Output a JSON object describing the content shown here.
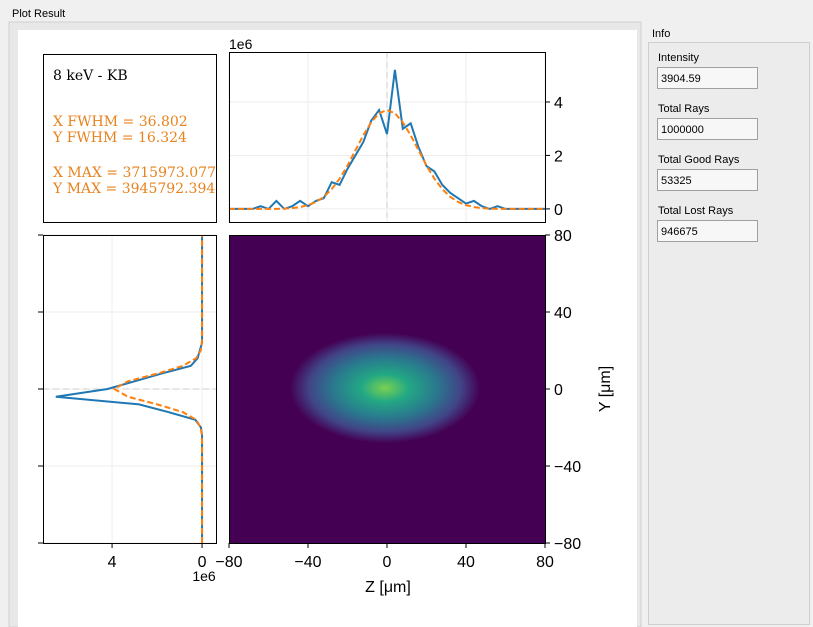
{
  "tab": "Plot Result",
  "info": {
    "title": "Info",
    "fields": [
      {
        "label": "Intensity",
        "value": "3904.59"
      },
      {
        "label": "Total Rays",
        "value": "1000000"
      },
      {
        "label": "Total Good Rays",
        "value": "53325"
      },
      {
        "label": "Total Lost Rays",
        "value": "946675"
      }
    ]
  },
  "text_box": {
    "title": "8 keV - KB",
    "lines": [
      "X FWHM = 36.802",
      "Y FWHM = 16.324",
      "X MAX = 3715973.077",
      "Y MAX = 3945792.394"
    ]
  },
  "chart_data": [
    {
      "type": "line",
      "offset_label": "1e6",
      "grid": true,
      "x": [
        -80,
        -76,
        -72,
        -68,
        -64,
        -60,
        -56,
        -52,
        -48,
        -44,
        -40,
        -36,
        -32,
        -28,
        -24,
        -20,
        -16,
        -12,
        -8,
        -4,
        0,
        4,
        8,
        12,
        16,
        20,
        24,
        28,
        32,
        36,
        40,
        44,
        48,
        52,
        56,
        60,
        64,
        68,
        72,
        76,
        80
      ],
      "series": [
        {
          "color": "#1f77b4",
          "values": [
            0,
            0,
            0,
            0,
            0.1,
            0,
            0.3,
            0,
            0.1,
            0.3,
            0.1,
            0.3,
            0.4,
            1.0,
            0.9,
            1.5,
            2.0,
            2.5,
            3.3,
            3.7,
            2.8,
            5.2,
            3.0,
            3.2,
            2.3,
            1.6,
            1.4,
            0.9,
            0.6,
            0.4,
            0.2,
            0.3,
            0.1,
            0,
            0.1,
            0,
            0,
            0,
            0,
            0,
            0
          ]
        },
        {
          "color": "#ff7f0e",
          "dashed": true,
          "values": [
            0,
            0,
            0,
            0,
            0,
            0,
            0,
            0.01,
            0.03,
            0.07,
            0.14,
            0.26,
            0.45,
            0.74,
            1.13,
            1.62,
            2.19,
            2.75,
            3.24,
            3.58,
            3.7,
            3.58,
            3.24,
            2.75,
            2.19,
            1.62,
            1.13,
            0.74,
            0.45,
            0.26,
            0.14,
            0.07,
            0.03,
            0.01,
            0,
            0,
            0,
            0,
            0,
            0,
            0
          ]
        }
      ],
      "xlim": [
        -80,
        80
      ],
      "ylim": [
        -0.49,
        5.87
      ],
      "yticks": [
        0,
        2,
        4
      ]
    },
    {
      "type": "heatmap",
      "xlabel": "Z [μm]",
      "ylabel": "Y [μm]",
      "xlim": [
        -80,
        80
      ],
      "ylim": [
        -80,
        80
      ],
      "xticks": [
        {
          "value": -80,
          "label": "−80"
        },
        {
          "value": -40,
          "label": "−40"
        },
        0,
        40,
        80
      ],
      "yticks": [
        {
          "value": -80,
          "label": "−80"
        },
        {
          "value": -40,
          "label": "−40"
        },
        0,
        40,
        80
      ]
    },
    {
      "type": "line",
      "orientation": "horizontal",
      "offset_label": "1e6",
      "grid": true,
      "y": [
        -80,
        -76,
        -72,
        -68,
        -64,
        -60,
        -56,
        -52,
        -48,
        -44,
        -40,
        -36,
        -32,
        -28,
        -24,
        -20,
        -16,
        -12,
        -8,
        -4,
        0,
        4,
        8,
        12,
        16,
        20,
        24,
        28,
        32,
        36,
        40,
        44,
        48,
        52,
        56,
        60,
        64,
        68,
        72,
        76,
        80
      ],
      "series": [
        {
          "color": "#1f77b4",
          "values": [
            0,
            0,
            0,
            0,
            0,
            0,
            0,
            0,
            0,
            0,
            0,
            0,
            0,
            0,
            0,
            0.05,
            0.3,
            1.5,
            2.8,
            6.5,
            4.2,
            3.0,
            1.8,
            0.5,
            0.2,
            0.1,
            0,
            0,
            0,
            0,
            0,
            0,
            0,
            0,
            0,
            0,
            0,
            0,
            0,
            0,
            0
          ]
        },
        {
          "color": "#ff7f0e",
          "dashed": true,
          "values": [
            0,
            0,
            0,
            0,
            0,
            0,
            0,
            0,
            0,
            0,
            0,
            0,
            0,
            0,
            0.01,
            0.06,
            0.26,
            0.86,
            1.99,
            3.3,
            3.9,
            3.3,
            1.99,
            0.86,
            0.26,
            0.06,
            0.01,
            0,
            0,
            0,
            0,
            0,
            0,
            0,
            0,
            0,
            0,
            0,
            0,
            0,
            0
          ]
        }
      ],
      "xlim": [
        7.07,
        -0.62
      ],
      "ylim": [
        -80,
        80
      ],
      "xticks": [
        4,
        0
      ]
    }
  ]
}
